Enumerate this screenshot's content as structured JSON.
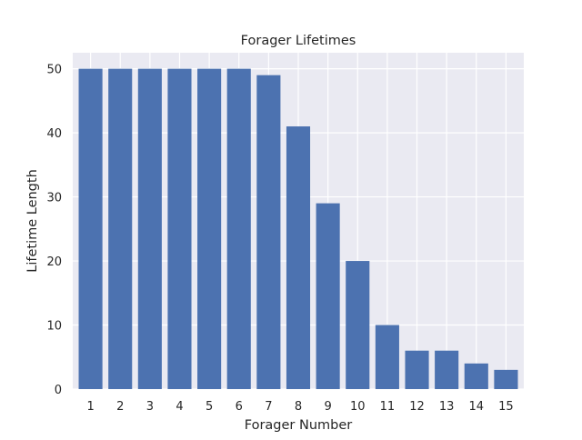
{
  "chart_data": {
    "type": "bar",
    "title": "Forager Lifetimes",
    "xlabel": "Forager Number",
    "ylabel": "Lifetime Length",
    "categories": [
      "1",
      "2",
      "3",
      "4",
      "5",
      "6",
      "7",
      "8",
      "9",
      "10",
      "11",
      "12",
      "13",
      "14",
      "15"
    ],
    "values": [
      50,
      50,
      50,
      50,
      50,
      50,
      49,
      41,
      29,
      20,
      10,
      6,
      6,
      4,
      3
    ],
    "ylim": [
      0,
      52.5
    ],
    "yticks": [
      0,
      10,
      20,
      30,
      40,
      50
    ],
    "grid": true,
    "colors": {
      "bar": "#4c72b0",
      "background": "#eaeaf2",
      "grid": "#ffffff"
    }
  }
}
